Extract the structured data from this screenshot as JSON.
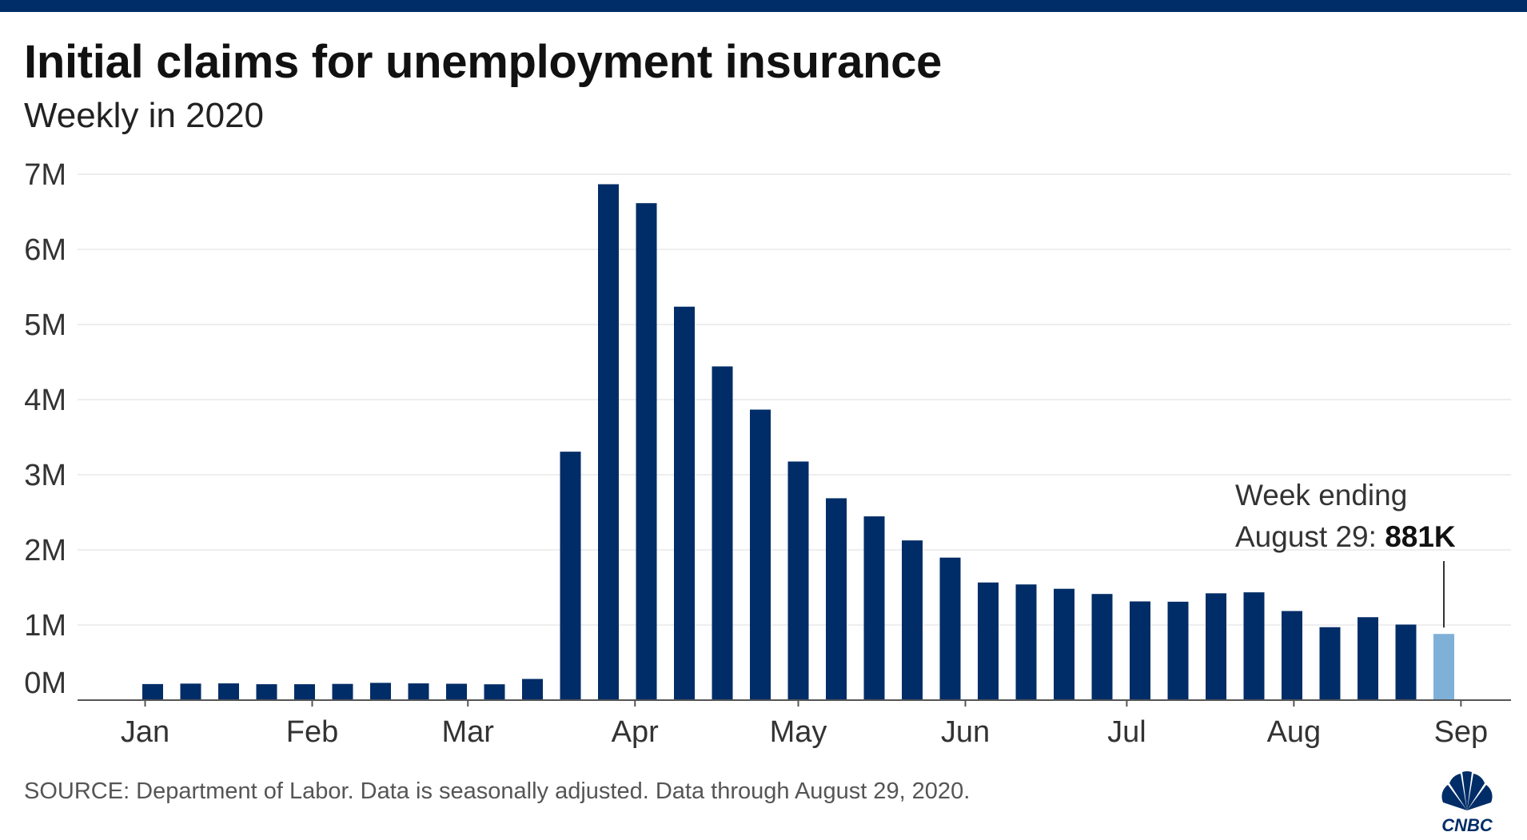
{
  "header": {
    "title": "Initial claims for unemployment insurance",
    "subtitle": "Weekly in 2020"
  },
  "footer": {
    "source": "SOURCE: Department of Labor. Data is seasonally adjusted. Data through August 29, 2020.",
    "logo_text": "CNBC"
  },
  "colors": {
    "bar": "#002d67",
    "highlight": "#7eb0d8",
    "grid": "#dddddd",
    "axis": "#555555"
  },
  "chart_data": {
    "type": "bar",
    "title": "Initial claims for unemployment insurance",
    "subtitle": "Weekly in 2020",
    "xlabel": "",
    "ylabel": "",
    "ylim": [
      0,
      7000000
    ],
    "y_ticks": [
      {
        "value": 0,
        "label": "0M"
      },
      {
        "value": 1000000,
        "label": "1M"
      },
      {
        "value": 2000000,
        "label": "2M"
      },
      {
        "value": 3000000,
        "label": "3M"
      },
      {
        "value": 4000000,
        "label": "4M"
      },
      {
        "value": 5000000,
        "label": "5M"
      },
      {
        "value": 6000000,
        "label": "6M"
      },
      {
        "value": 7000000,
        "label": "7M"
      }
    ],
    "grid": true,
    "x_ticks": [
      {
        "label": "Jan",
        "position": -0.2
      },
      {
        "label": "Feb",
        "position": 4.2
      },
      {
        "label": "Mar",
        "position": 8.3
      },
      {
        "label": "Apr",
        "position": 12.7
      },
      {
        "label": "May",
        "position": 17.0
      },
      {
        "label": "Jun",
        "position": 21.4
      },
      {
        "label": "Jul",
        "position": 25.65
      },
      {
        "label": "Aug",
        "position": 30.05
      },
      {
        "label": "Sep",
        "position": 34.45
      }
    ],
    "values": [
      214000,
      220000,
      223000,
      212000,
      212000,
      216000,
      230000,
      223000,
      218000,
      211000,
      282000,
      3307000,
      6867000,
      6615000,
      5237000,
      4442000,
      3867000,
      3176000,
      2687000,
      2446000,
      2126000,
      1897000,
      1566000,
      1540000,
      1482000,
      1413000,
      1314000,
      1310000,
      1422000,
      1435000,
      1186000,
      971000,
      1104000,
      1006000,
      881000
    ],
    "highlight_index": 34,
    "annotation": {
      "line1": "Week ending",
      "line2_prefix": "August 29: ",
      "line2_value": "881K"
    }
  }
}
